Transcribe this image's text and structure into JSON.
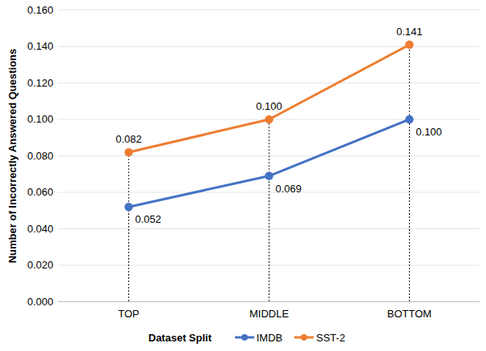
{
  "chart_data": {
    "type": "line",
    "x_label": "Dataset Split",
    "y_label": "Number of Incorrectly Answered Questions",
    "categories": [
      "TOP",
      "MIDDLE",
      "BOTTOM"
    ],
    "series": [
      {
        "name": "IMDB",
        "color": "#4472c4",
        "marker": "circle",
        "line_style": "solid",
        "values": [
          0.052,
          0.069,
          0.1
        ],
        "value_labels": [
          "0.052",
          "0.069",
          "0.100"
        ]
      },
      {
        "name": "SST-2",
        "color": "#ed7d31",
        "marker": "circle",
        "line_style": "solid",
        "values": [
          0.082,
          0.1,
          0.141
        ],
        "value_labels": [
          "0.082",
          "0.100",
          "0.141"
        ]
      }
    ],
    "ylim": [
      0,
      0.16
    ],
    "yticks": [
      {
        "value": 0,
        "label": "0.000"
      },
      {
        "value": 0.02,
        "label": "0.020"
      },
      {
        "value": 0.04,
        "label": "0.040"
      },
      {
        "value": 0.06,
        "label": "0.060"
      },
      {
        "value": 0.08,
        "label": "0.080"
      },
      {
        "value": 0.1,
        "label": "0.100"
      },
      {
        "value": 0.12,
        "label": "0.120"
      },
      {
        "value": 0.14,
        "label": "0.140"
      },
      {
        "value": 0.16,
        "label": "0.160"
      }
    ],
    "grid": true,
    "data_labels": true,
    "legend": "bottom"
  }
}
